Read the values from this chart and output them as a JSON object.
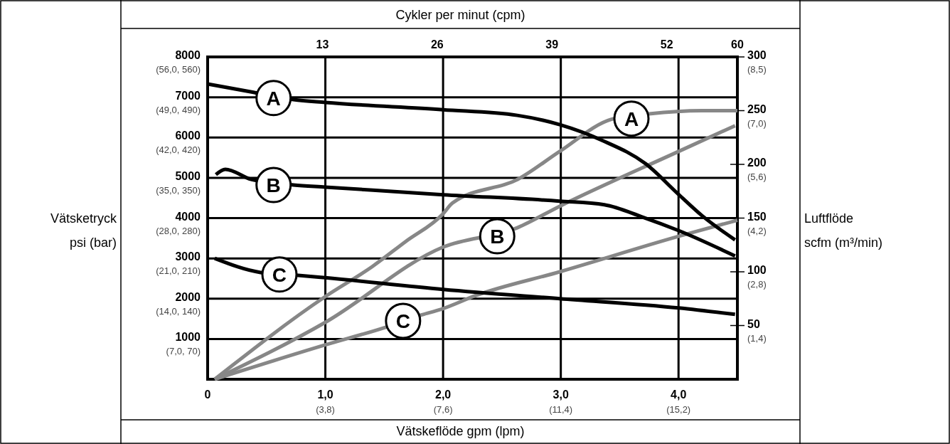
{
  "chart_data": {
    "type": "line",
    "x2label": "Cykler per minut (cpm)",
    "xlabel": "Vätskeflöde gpm (lpm)",
    "ylabel": "Vätsketryck psi (bar)",
    "y2label": "Luftflöde scfm (m³/min)",
    "xlim": [
      0,
      4.5
    ],
    "xticks": [
      0,
      {
        "value": 1,
        "label": "1,0"
      },
      {
        "value": 2,
        "label": "2,0"
      },
      {
        "value": 3,
        "label": "3,0"
      },
      {
        "value": 4,
        "label": "4,0"
      }
    ],
    "x2lim": [
      0,
      60
    ],
    "x2ticks": [
      13,
      26,
      39,
      52,
      60
    ],
    "ylim": [
      0,
      8000
    ],
    "yticks": [
      1000,
      2000,
      3000,
      4000,
      5000,
      6000,
      7000,
      8000
    ],
    "y2lim": [
      0,
      300
    ],
    "y2ticks": [
      50,
      100,
      150,
      200,
      250,
      300
    ],
    "grid": true,
    "series": [
      {
        "color": "#000000",
        "x": [
          0,
          0.39,
          0.73,
          1.0,
          2.0,
          2.63,
          2.99,
          3.35,
          3.72,
          4.0,
          4.2,
          4.48
        ],
        "values": [
          7330,
          7120,
          6940,
          6870,
          6690,
          6550,
          6320,
          5930,
          5350,
          4590,
          4060,
          3460
        ]
      },
      {
        "color": "#000000",
        "x": [
          0.07,
          0.15,
          0.37,
          0.73,
          1.0,
          2.0,
          2.99,
          3.37,
          3.69,
          4.0,
          4.48
        ],
        "values": [
          5080,
          5210,
          4960,
          4820,
          4770,
          4580,
          4420,
          4330,
          4030,
          3690,
          3060
        ]
      },
      {
        "color": "#000000",
        "x": [
          0.06,
          0.45,
          0.77,
          1.0,
          2.0,
          2.99,
          4.0,
          4.48
        ],
        "values": [
          3000,
          2650,
          2580,
          2520,
          2230,
          2000,
          1770,
          1610
        ]
      },
      {
        "color": "#878787",
        "axis": "y2",
        "x": [
          0.06,
          1.0,
          1.4,
          1.68,
          2.0,
          2.08,
          2.65,
          2.99,
          3.43,
          3.75,
          4.2,
          4.5
        ],
        "values": [
          0,
          77,
          105,
          128,
          154,
          164,
          187,
          212,
          242,
          247,
          250,
          250
        ]
      },
      {
        "color": "#878787",
        "axis": "y2",
        "x": [
          0.06,
          1.0,
          2.0,
          2.63,
          2.99,
          4.0,
          4.48
        ],
        "values": [
          0,
          53,
          123,
          141,
          161,
          212,
          236
        ]
      },
      {
        "color": "#878787",
        "axis": "y2",
        "x": [
          0.06,
          1.0,
          1.5,
          1.82,
          1.98,
          2.28,
          2.99,
          4.0,
          4.5
        ],
        "values": [
          0,
          32,
          48,
          60,
          65,
          78,
          100,
          133,
          148
        ]
      }
    ],
    "annotations": [
      {
        "text": "A",
        "x": 0.56,
        "y": 6980
      },
      {
        "text": "B",
        "x": 0.56,
        "y": 4820
      },
      {
        "text": "C",
        "x": 0.61,
        "y": 2600
      },
      {
        "text": "A",
        "x": 3.6,
        "y": 6470
      },
      {
        "text": "B",
        "x": 2.46,
        "y": 3550
      },
      {
        "text": "C",
        "x": 1.66,
        "y": 1450
      },
      "(3,8)",
      "(7,6)",
      "(11,4)",
      "(15,2)",
      "(7,0, 70)",
      "(14,0, 140)",
      "(21,0, 210)",
      "(28,0, 280)",
      "(35,0, 350)",
      "(42,0, 420)",
      "(49,0, 490)",
      "(56,0, 560)",
      "(1,4)",
      "(2,8)",
      "(4,2)",
      "(5,6)",
      "(7,0)",
      "(8,5)"
    ]
  }
}
